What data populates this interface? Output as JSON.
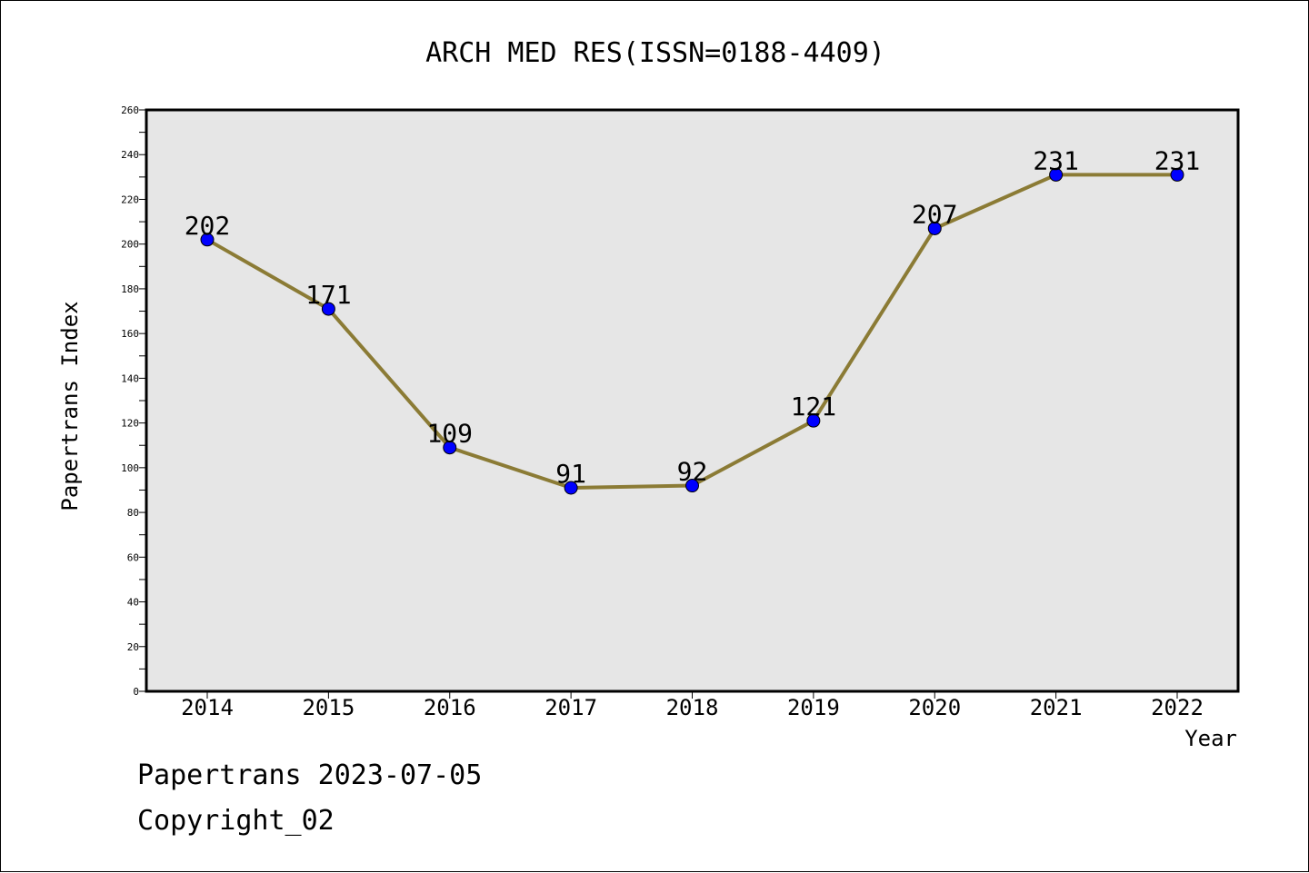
{
  "footer": {
    "line1": "Papertrans 2023-07-05",
    "line2": "Copyright_02"
  },
  "colors": {
    "line": "#8B7B35",
    "marker": "#0000FF",
    "plot_bg": "#E6E6E6"
  },
  "chart_data": {
    "type": "line",
    "title": "ARCH MED RES(ISSN=0188-4409)",
    "xlabel": "Year",
    "ylabel": "Papertrans Index",
    "categories": [
      "2014",
      "2015",
      "2016",
      "2017",
      "2018",
      "2019",
      "2020",
      "2021",
      "2022"
    ],
    "series": [
      {
        "values": [
          202,
          171,
          109,
          91,
          92,
          121,
          207,
          231,
          231
        ]
      }
    ],
    "data_labels": [
      "202",
      "171",
      "109",
      "91",
      "92",
      "121",
      "207",
      "231",
      "231"
    ],
    "ylim": [
      0,
      260
    ],
    "yticks": [
      "0",
      "20",
      "40",
      "60",
      "80",
      "100",
      "120",
      "140",
      "160",
      "180",
      "200",
      "220",
      "240",
      "260"
    ],
    "grid": false,
    "legend": "none"
  }
}
